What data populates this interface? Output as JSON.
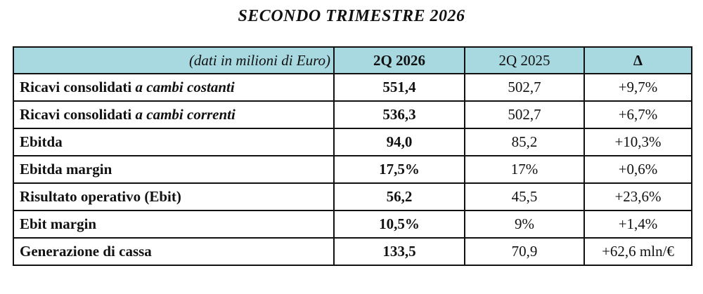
{
  "title": "SECONDO TRIMESTRE 2026",
  "table": {
    "header": {
      "label": "(dati in milioni di Euro)",
      "current": "2Q 2026",
      "previous": "2Q 2025",
      "delta": "Δ"
    },
    "rows": [
      {
        "label": "Ricavi consolidati ",
        "label_italic": "a cambi costanti",
        "current": "551,4",
        "previous": "502,7",
        "delta": "+9,7%"
      },
      {
        "label": "Ricavi consolidati ",
        "label_italic": "a cambi correnti",
        "current": "536,3",
        "previous": "502,7",
        "delta": "+6,7%"
      },
      {
        "label": "Ebitda",
        "label_italic": "",
        "current": "94,0",
        "previous": "85,2",
        "delta": "+10,3%"
      },
      {
        "label": "Ebitda margin",
        "label_italic": "",
        "current": "17,5%",
        "previous": "17%",
        "delta": "+0,6%"
      },
      {
        "label": "Risultato operativo (Ebit)",
        "label_italic": "",
        "current": "56,2",
        "previous": "45,5",
        "delta": "+23,6%"
      },
      {
        "label": "Ebit margin",
        "label_italic": "",
        "current": "10,5%",
        "previous": "9%",
        "delta": "+1,4%"
      },
      {
        "label": "Generazione di cassa",
        "label_italic": "",
        "current": "133,5",
        "previous": "70,9",
        "delta": "+62,6 mln/€"
      }
    ]
  },
  "colors": {
    "header_background": "#a8d8e0",
    "border": "#111111"
  }
}
